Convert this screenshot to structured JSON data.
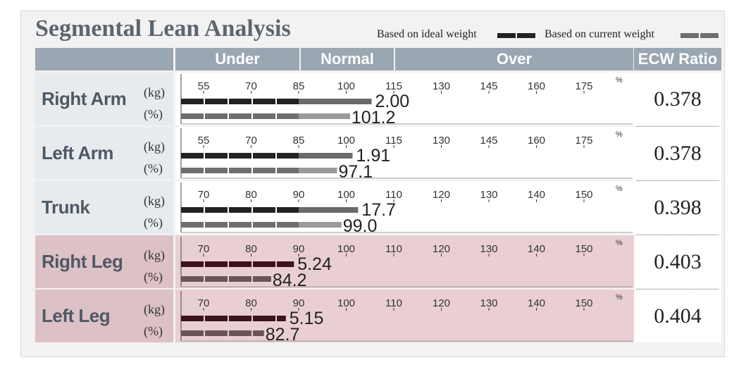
{
  "chart_data": {
    "type": "bar",
    "title": "Segmental Lean Analysis",
    "legend": [
      {
        "label": "Based on ideal weight",
        "color": "#222222"
      },
      {
        "label": "Based on current weight",
        "color": "#6e6e6e"
      }
    ],
    "headers": {
      "under": "Under",
      "normal": "Normal",
      "over": "Over",
      "ecw": "ECW Ratio"
    },
    "percent_symbol": "%",
    "units": {
      "kg": "(kg)",
      "pct": "(%)"
    },
    "segments": [
      {
        "name": "Right Arm",
        "ticks": [
          55,
          70,
          85,
          100,
          115,
          130,
          145,
          160,
          175
        ],
        "kg": {
          "label": "2.00",
          "position": 108
        },
        "pct": {
          "label": "101.2",
          "value": 101.2
        },
        "ecw": "0.378",
        "highlight": false
      },
      {
        "name": "Left Arm",
        "ticks": [
          55,
          70,
          85,
          100,
          115,
          130,
          145,
          160,
          175
        ],
        "kg": {
          "label": "1.91",
          "position": 102
        },
        "pct": {
          "label": "97.1",
          "value": 97.1
        },
        "ecw": "0.378",
        "highlight": false
      },
      {
        "name": "Trunk",
        "ticks": [
          70,
          80,
          90,
          100,
          110,
          120,
          130,
          140,
          150
        ],
        "kg": {
          "label": "17.7",
          "position": 102.5
        },
        "pct": {
          "label": "99.0",
          "value": 99.0
        },
        "ecw": "0.398",
        "highlight": false
      },
      {
        "name": "Right Leg",
        "ticks": [
          70,
          80,
          90,
          100,
          110,
          120,
          130,
          140,
          150
        ],
        "kg": {
          "label": "5.24",
          "position": 89
        },
        "pct": {
          "label": "84.2",
          "value": 84.2
        },
        "ecw": "0.403",
        "highlight": true
      },
      {
        "name": "Left Leg",
        "ticks": [
          70,
          80,
          90,
          100,
          110,
          120,
          130,
          140,
          150
        ],
        "kg": {
          "label": "5.15",
          "position": 87.3
        },
        "pct": {
          "label": "82.7",
          "value": 82.7
        },
        "ecw": "0.404",
        "highlight": true
      }
    ],
    "colors": {
      "header": "#9aa6b1",
      "row_bg": "#e7ebee",
      "highlight_bg": "#e9cfd3",
      "highlight_label_bg": "#dcc1c6",
      "bar_ideal": "#222222",
      "bar_ideal_highlight": "#3a1418",
      "bar_current": "#6e6e6e",
      "bar_current_highlight": "#6b5458",
      "bar_normal_ideal": "#6a6a6a",
      "bar_normal_current": "#9a9a9a"
    }
  }
}
